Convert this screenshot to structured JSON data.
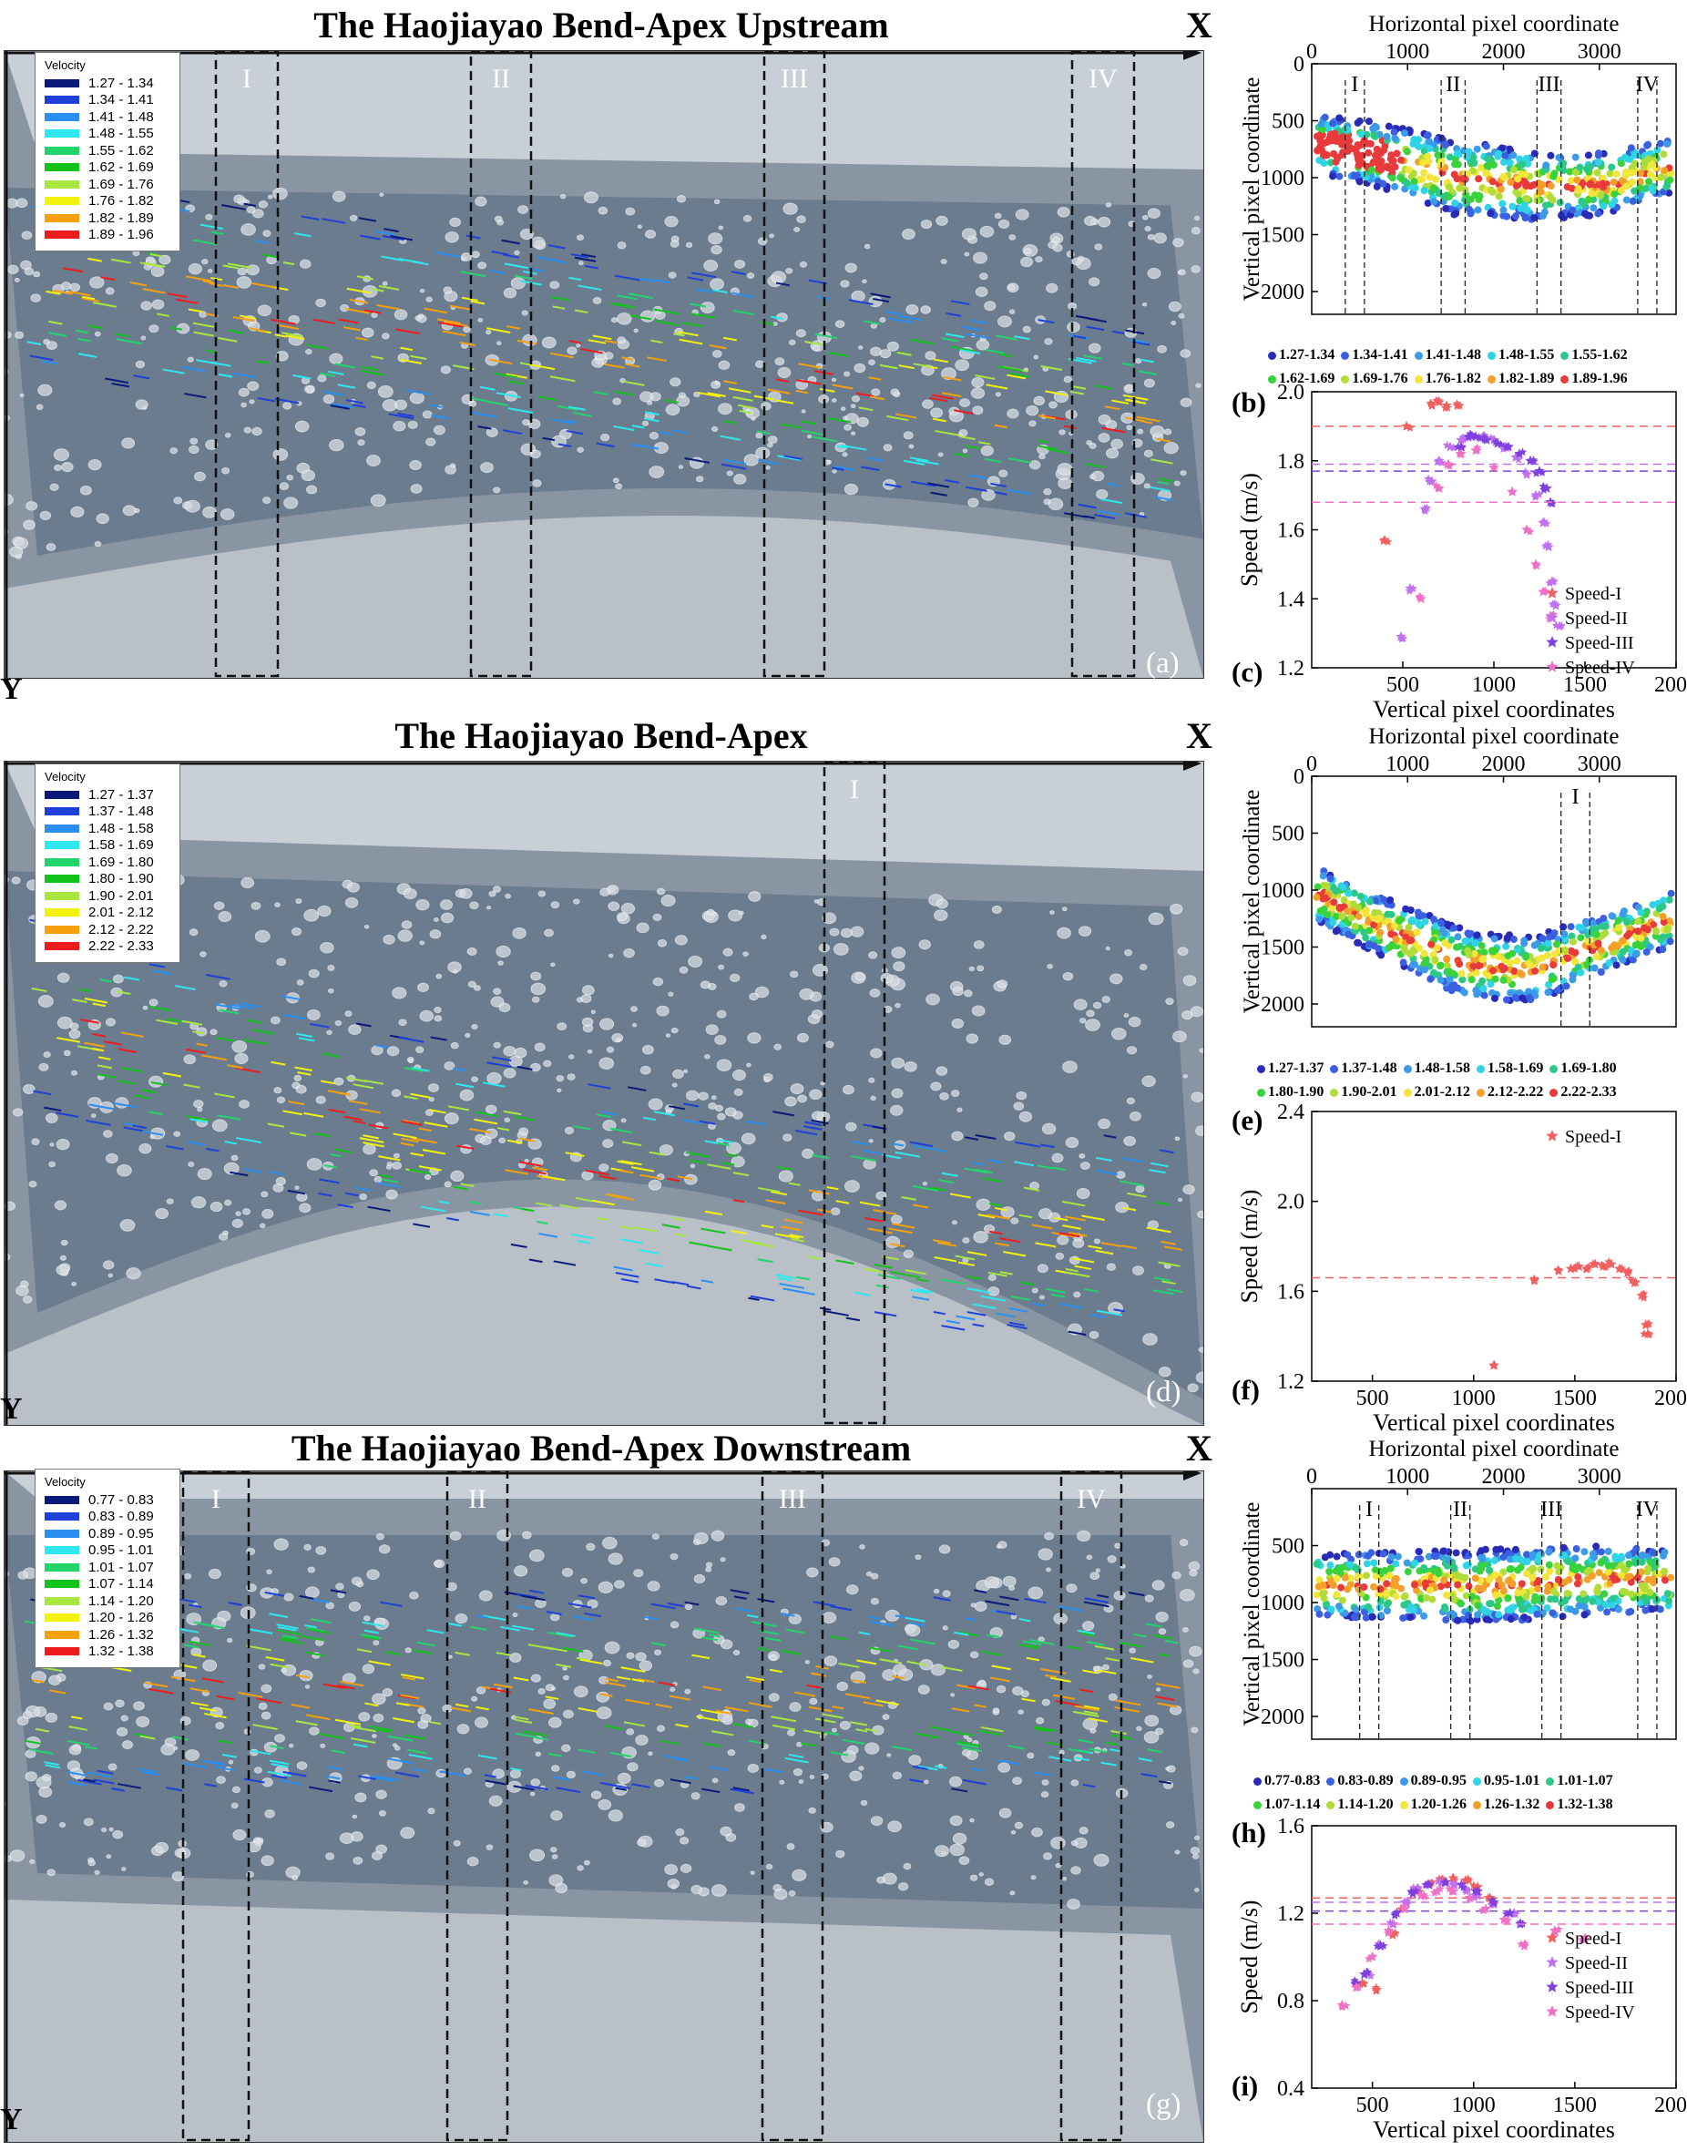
{
  "rows": [
    {
      "title": "The Haojiayao Bend-Apex Upstream",
      "x_letter": "X",
      "y_letter": "Y",
      "photo_tag": "(a)",
      "zones": [
        "I",
        "II",
        "III",
        "IV"
      ],
      "legend": {
        "title": "Velocity",
        "items": [
          {
            "label": "1.27 - 1.34",
            "color": "#0a1a7a"
          },
          {
            "label": "1.34 - 1.41",
            "color": "#1f3fd9"
          },
          {
            "label": "1.41 - 1.48",
            "color": "#2a8ff0"
          },
          {
            "label": "1.48 - 1.55",
            "color": "#2ee8ee"
          },
          {
            "label": "1.55 - 1.62",
            "color": "#22d46a"
          },
          {
            "label": "1.62 - 1.69",
            "color": "#14c21c"
          },
          {
            "label": "1.69 - 1.76",
            "color": "#a8e640"
          },
          {
            "label": "1.76 - 1.82",
            "color": "#f2f20c"
          },
          {
            "label": "1.82 - 1.89",
            "color": "#f5a00c"
          },
          {
            "label": "1.89 - 1.96",
            "color": "#ee1c1c"
          }
        ]
      },
      "scatter_tag": "(b)",
      "speed_tag": "(c)"
    },
    {
      "title": "The Haojiayao Bend-Apex",
      "x_letter": "X",
      "y_letter": "Y",
      "photo_tag": "(d)",
      "zones": [
        "I"
      ],
      "legend": {
        "title": "Velocity",
        "items": [
          {
            "label": "1.27 - 1.37",
            "color": "#0a1a7a"
          },
          {
            "label": "1.37 - 1.48",
            "color": "#1f3fd9"
          },
          {
            "label": "1.48 - 1.58",
            "color": "#2a8ff0"
          },
          {
            "label": "1.58 - 1.69",
            "color": "#2ee8ee"
          },
          {
            "label": "1.69 - 1.80",
            "color": "#22d46a"
          },
          {
            "label": "1.80 - 1.90",
            "color": "#14c21c"
          },
          {
            "label": "1.90 - 2.01",
            "color": "#a8e640"
          },
          {
            "label": "2.01 - 2.12",
            "color": "#f2f20c"
          },
          {
            "label": "2.12 - 2.22",
            "color": "#f5a00c"
          },
          {
            "label": "2.22 - 2.33",
            "color": "#ee1c1c"
          }
        ]
      },
      "scatter_tag": "(e)",
      "speed_tag": "(f)"
    },
    {
      "title": "The Haojiayao Bend-Apex Downstream",
      "x_letter": "X",
      "y_letter": "Y",
      "photo_tag": "(g)",
      "zones": [
        "I",
        "II",
        "III",
        "IV"
      ],
      "legend": {
        "title": "Velocity",
        "items": [
          {
            "label": "0.77 - 0.83",
            "color": "#0a1a7a"
          },
          {
            "label": "0.83 - 0.89",
            "color": "#1f3fd9"
          },
          {
            "label": "0.89 - 0.95",
            "color": "#2a8ff0"
          },
          {
            "label": "0.95 - 1.01",
            "color": "#2ee8ee"
          },
          {
            "label": "1.01 - 1.07",
            "color": "#22d46a"
          },
          {
            "label": "1.07 - 1.14",
            "color": "#14c21c"
          },
          {
            "label": "1.14 - 1.20",
            "color": "#a8e640"
          },
          {
            "label": "1.20 - 1.26",
            "color": "#f2f20c"
          },
          {
            "label": "1.26 - 1.32",
            "color": "#f5a00c"
          },
          {
            "label": "1.32 - 1.38",
            "color": "#ee1c1c"
          }
        ]
      },
      "scatter_tag": "(h)",
      "speed_tag": "(i)"
    }
  ],
  "chart_data": [
    {
      "id": "b",
      "type": "scatter",
      "xlabel": "Horizontal pixel coordinate",
      "ylabel": "Vertical pixel coordinate",
      "xlim": [
        0,
        3800
      ],
      "ylim": [
        2200,
        0
      ],
      "xticks": [
        0,
        1000,
        2000,
        3000
      ],
      "yticks": [
        0,
        500,
        1000,
        1500,
        2000
      ],
      "zones": [
        "I",
        "II",
        "III",
        "IV"
      ],
      "zone_bounds": [
        [
          350,
          550
        ],
        [
          1350,
          1600
        ],
        [
          2350,
          2600
        ],
        [
          3400,
          3600
        ]
      ],
      "legend_entries": [
        "1.27-1.34",
        "1.34-1.41",
        "1.41-1.48",
        "1.48-1.55",
        "1.55-1.62",
        "1.62-1.69",
        "1.69-1.76",
        "1.76-1.82",
        "1.82-1.89",
        "1.89-1.96"
      ],
      "band": {
        "center": [
          [
            0,
            700
          ],
          [
            600,
            780
          ],
          [
            1500,
            1000
          ],
          [
            2400,
            1080
          ],
          [
            3100,
            1050
          ],
          [
            3750,
            900
          ]
        ],
        "halfwidth": [
          [
            0,
            250
          ],
          [
            1500,
            330
          ],
          [
            3750,
            250
          ]
        ]
      }
    },
    {
      "id": "c",
      "type": "scatter",
      "xlabel": "Vertical pixel coordinates",
      "ylabel": "Speed (m/s)",
      "xlim": [
        0,
        2000
      ],
      "ylim": [
        1.2,
        2.0
      ],
      "xticks": [
        500,
        1000,
        1500,
        2000
      ],
      "yticks": [
        1.2,
        1.4,
        1.6,
        1.8,
        2.0
      ],
      "series": [
        {
          "name": "Speed-I",
          "color": "#f06060",
          "mean": 1.9,
          "points": [
            [
              400,
              1.57
            ],
            [
              520,
              1.9
            ],
            [
              660,
              1.96
            ],
            [
              700,
              1.97
            ],
            [
              740,
              1.96
            ],
            [
              800,
              1.96
            ]
          ]
        },
        {
          "name": "Speed-II",
          "color": "#c070f0",
          "mean": 1.79,
          "points": [
            [
              490,
              1.29
            ],
            [
              540,
              1.43
            ],
            [
              620,
              1.66
            ],
            [
              660,
              1.74
            ],
            [
              700,
              1.8
            ],
            [
              760,
              1.84
            ],
            [
              820,
              1.86
            ],
            [
              880,
              1.87
            ],
            [
              940,
              1.87
            ],
            [
              1000,
              1.86
            ],
            [
              1060,
              1.84
            ],
            [
              1120,
              1.81
            ],
            [
              1180,
              1.76
            ],
            [
              1230,
              1.7
            ],
            [
              1270,
              1.62
            ],
            [
              1300,
              1.55
            ],
            [
              1320,
              1.45
            ],
            [
              1340,
              1.38
            ],
            [
              1360,
              1.32
            ]
          ]
        },
        {
          "name": "Speed-III",
          "color": "#8040e0",
          "mean": 1.77,
          "points": [
            [
              820,
              1.84
            ],
            [
              860,
              1.87
            ],
            [
              900,
              1.87
            ],
            [
              960,
              1.86
            ],
            [
              1020,
              1.85
            ],
            [
              1080,
              1.84
            ],
            [
              1140,
              1.82
            ],
            [
              1200,
              1.8
            ],
            [
              1250,
              1.77
            ],
            [
              1290,
              1.72
            ],
            [
              1310,
              1.68
            ]
          ]
        },
        {
          "name": "Speed-IV",
          "color": "#f070c8",
          "mean": 1.68,
          "points": [
            [
              600,
              1.4
            ],
            [
              700,
              1.72
            ],
            [
              750,
              1.79
            ],
            [
              820,
              1.82
            ],
            [
              900,
              1.83
            ],
            [
              1000,
              1.78
            ],
            [
              1100,
              1.71
            ],
            [
              1180,
              1.6
            ],
            [
              1230,
              1.5
            ],
            [
              1270,
              1.42
            ],
            [
              1310,
              1.35
            ]
          ]
        }
      ]
    },
    {
      "id": "e",
      "type": "scatter",
      "xlabel": "Horizontal pixel coordinate",
      "ylabel": "Vertical pixel coordinate",
      "xlim": [
        0,
        3800
      ],
      "ylim": [
        2200,
        0
      ],
      "xticks": [
        0,
        1000,
        2000,
        3000
      ],
      "yticks": [
        0,
        500,
        1000,
        1500,
        2000
      ],
      "zones": [
        "I"
      ],
      "zone_bounds": [
        [
          2600,
          2900
        ]
      ],
      "legend_entries": [
        "1.27-1.37",
        "1.37-1.48",
        "1.48-1.58",
        "1.58-1.69",
        "1.69-1.80",
        "1.80-1.90",
        "1.90-2.01",
        "2.01-2.12",
        "2.12-2.22",
        "2.22-2.33"
      ],
      "band": {
        "center": [
          [
            100,
            1050
          ],
          [
            800,
            1350
          ],
          [
            1600,
            1650
          ],
          [
            2300,
            1700
          ],
          [
            3000,
            1480
          ],
          [
            3750,
            1250
          ]
        ],
        "halfwidth": [
          [
            100,
            250
          ],
          [
            1600,
            300
          ],
          [
            3750,
            250
          ]
        ]
      }
    },
    {
      "id": "f",
      "type": "scatter",
      "xlabel": "Vertical pixel coordinates",
      "ylabel": "Speed (m/s)",
      "xlim": [
        200,
        2000
      ],
      "ylim": [
        1.2,
        2.4
      ],
      "xticks": [
        500,
        1000,
        1500,
        2000
      ],
      "yticks": [
        1.2,
        1.6,
        2.0,
        2.4
      ],
      "series": [
        {
          "name": "Speed-I",
          "color": "#f06060",
          "mean": 1.66,
          "points": [
            [
              1100,
              1.27
            ],
            [
              1300,
              1.65
            ],
            [
              1420,
              1.69
            ],
            [
              1480,
              1.7
            ],
            [
              1520,
              1.71
            ],
            [
              1560,
              1.7
            ],
            [
              1600,
              1.72
            ],
            [
              1640,
              1.71
            ],
            [
              1680,
              1.72
            ],
            [
              1720,
              1.7
            ],
            [
              1760,
              1.68
            ],
            [
              1800,
              1.64
            ],
            [
              1830,
              1.58
            ],
            [
              1850,
              1.45
            ],
            [
              1860,
              1.41
            ]
          ]
        }
      ]
    },
    {
      "id": "h",
      "type": "scatter",
      "xlabel": "Horizontal pixel coordinate",
      "ylabel": "Vertical pixel coordinate",
      "xlim": [
        0,
        3800
      ],
      "ylim": [
        2200,
        0
      ],
      "xticks": [
        0,
        1000,
        2000,
        3000
      ],
      "yticks": [
        500,
        1000,
        1500,
        2000
      ],
      "zones": [
        "I",
        "II",
        "III",
        "IV"
      ],
      "zone_bounds": [
        [
          500,
          700
        ],
        [
          1450,
          1650
        ],
        [
          2400,
          2600
        ],
        [
          3400,
          3600
        ]
      ],
      "legend_entries": [
        "0.77-0.83",
        "0.83-0.89",
        "0.89-0.95",
        "0.95-1.01",
        "1.01-1.07",
        "1.07-1.14",
        "1.14-1.20",
        "1.20-1.26",
        "1.26-1.32",
        "1.32-1.38"
      ],
      "band": {
        "center": [
          [
            100,
            850
          ],
          [
            1000,
            850
          ],
          [
            2000,
            850
          ],
          [
            3000,
            800
          ],
          [
            3750,
            800
          ]
        ],
        "halfwidth": [
          [
            100,
            280
          ],
          [
            2000,
            320
          ],
          [
            3750,
            280
          ]
        ]
      }
    },
    {
      "id": "i",
      "type": "scatter",
      "xlabel": "Vertical pixel coordinates",
      "ylabel": "Speed (m/s)",
      "xlim": [
        200,
        2000
      ],
      "ylim": [
        0.4,
        1.6
      ],
      "xticks": [
        500,
        1000,
        1500,
        2000
      ],
      "yticks": [
        0.4,
        0.8,
        1.2,
        1.6
      ],
      "series": [
        {
          "name": "Speed-I",
          "color": "#f06060",
          "mean": 1.27,
          "points": [
            [
              450,
              0.88
            ],
            [
              520,
              0.85
            ],
            [
              600,
              1.1
            ],
            [
              660,
              1.22
            ],
            [
              720,
              1.3
            ],
            [
              780,
              1.33
            ],
            [
              840,
              1.35
            ],
            [
              900,
              1.36
            ],
            [
              960,
              1.35
            ],
            [
              1020,
              1.32
            ],
            [
              1080,
              1.27
            ]
          ]
        },
        {
          "name": "Speed-II",
          "color": "#c070f0",
          "mean": 1.25,
          "points": [
            [
              480,
              0.92
            ],
            [
              540,
              1.05
            ],
            [
              600,
              1.15
            ],
            [
              660,
              1.25
            ],
            [
              720,
              1.31
            ],
            [
              780,
              1.33
            ],
            [
              840,
              1.34
            ],
            [
              900,
              1.33
            ],
            [
              960,
              1.31
            ],
            [
              1020,
              1.28
            ],
            [
              1100,
              1.24
            ],
            [
              1200,
              1.2
            ]
          ]
        },
        {
          "name": "Speed-III",
          "color": "#8040e0",
          "mean": 1.21,
          "points": [
            [
              420,
              0.88
            ],
            [
              460,
              0.92
            ],
            [
              540,
              1.05
            ],
            [
              620,
              1.2
            ],
            [
              700,
              1.29
            ],
            [
              780,
              1.33
            ],
            [
              860,
              1.34
            ],
            [
              940,
              1.33
            ],
            [
              1020,
              1.3
            ],
            [
              1100,
              1.25
            ],
            [
              1180,
              1.2
            ],
            [
              1230,
              1.15
            ]
          ]
        },
        {
          "name": "Speed-IV",
          "color": "#f070c8",
          "mean": 1.15,
          "points": [
            [
              350,
              0.78
            ],
            [
              420,
              0.86
            ],
            [
              500,
              1.0
            ],
            [
              580,
              1.12
            ],
            [
              660,
              1.22
            ],
            [
              740,
              1.28
            ],
            [
              820,
              1.3
            ],
            [
              900,
              1.3
            ],
            [
              980,
              1.27
            ],
            [
              1060,
              1.22
            ],
            [
              1150,
              1.17
            ],
            [
              1250,
              1.05
            ],
            [
              1400,
              1.12
            ],
            [
              1550,
              1.08
            ]
          ]
        }
      ]
    }
  ]
}
